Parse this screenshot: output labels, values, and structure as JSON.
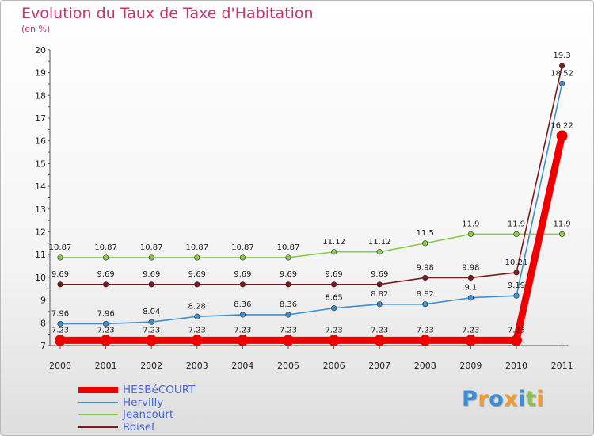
{
  "header": {
    "title": "Evolution du Taux de Taxe d'Habitation",
    "unit": "(en %)"
  },
  "brand": {
    "logo_text": "Proxiti",
    "logo_colors": [
      "#3a8fd8",
      "#f29a2e",
      "#3a8fd8",
      "#f29a2e",
      "#3a8fd8",
      "#8bc34a",
      "#f29a2e"
    ]
  },
  "chart_data": {
    "type": "line",
    "title": "Evolution du Taux de Taxe d'Habitation",
    "ylabel": "(en %)",
    "xlabel": "",
    "x": [
      "2000",
      "2001",
      "2002",
      "2003",
      "2004",
      "2005",
      "2006",
      "2007",
      "2008",
      "2009",
      "2010",
      "2011"
    ],
    "ylim": [
      7,
      20
    ],
    "yticks": [
      7,
      8,
      9,
      10,
      11,
      12,
      13,
      14,
      15,
      16,
      17,
      18,
      19,
      20
    ],
    "grid": false,
    "legend_position": "bottom-left",
    "series": [
      {
        "name": "HESBéCOURT",
        "color": "#ee0000",
        "width": "thick",
        "values": [
          7.23,
          7.23,
          7.23,
          7.23,
          7.23,
          7.23,
          7.23,
          7.23,
          7.23,
          7.23,
          7.23,
          16.22
        ],
        "labels": [
          "7.23",
          "7.23",
          "7.23",
          "7.23",
          "7.23",
          "7.23",
          "7.23",
          "7.23",
          "7.23",
          "7.23",
          "7.23",
          "16.22"
        ]
      },
      {
        "name": "Hervilly",
        "color": "#3e8ed0",
        "width": "thin",
        "values": [
          7.96,
          7.96,
          8.04,
          8.28,
          8.36,
          8.36,
          8.65,
          8.82,
          8.82,
          9.1,
          9.19,
          18.52
        ],
        "labels": [
          "7.96",
          "7.96",
          "8.04",
          "8.28",
          "8.36",
          "8.36",
          "8.65",
          "8.82",
          "8.82",
          "9.1",
          "9.19",
          "18.52"
        ]
      },
      {
        "name": "Jeancourt",
        "color": "#88cc44",
        "width": "thin",
        "values": [
          10.87,
          10.87,
          10.87,
          10.87,
          10.87,
          10.87,
          11.12,
          11.12,
          11.5,
          11.9,
          11.9,
          11.9
        ],
        "labels": [
          "10.87",
          "10.87",
          "10.87",
          "10.87",
          "10.87",
          "10.87",
          "11.12",
          "11.12",
          "11.5",
          "11.9",
          "11.9",
          "11.9"
        ]
      },
      {
        "name": "Roisel",
        "color": "#7a1a1a",
        "width": "thin",
        "values": [
          9.69,
          9.69,
          9.69,
          9.69,
          9.69,
          9.69,
          9.69,
          9.69,
          9.98,
          9.98,
          10.21,
          19.3
        ],
        "labels": [
          "9.69",
          "9.69",
          "9.69",
          "9.69",
          "9.69",
          "9.69",
          "9.69",
          "9.69",
          "9.98",
          "9.98",
          "10.21",
          "19.3"
        ]
      }
    ]
  }
}
